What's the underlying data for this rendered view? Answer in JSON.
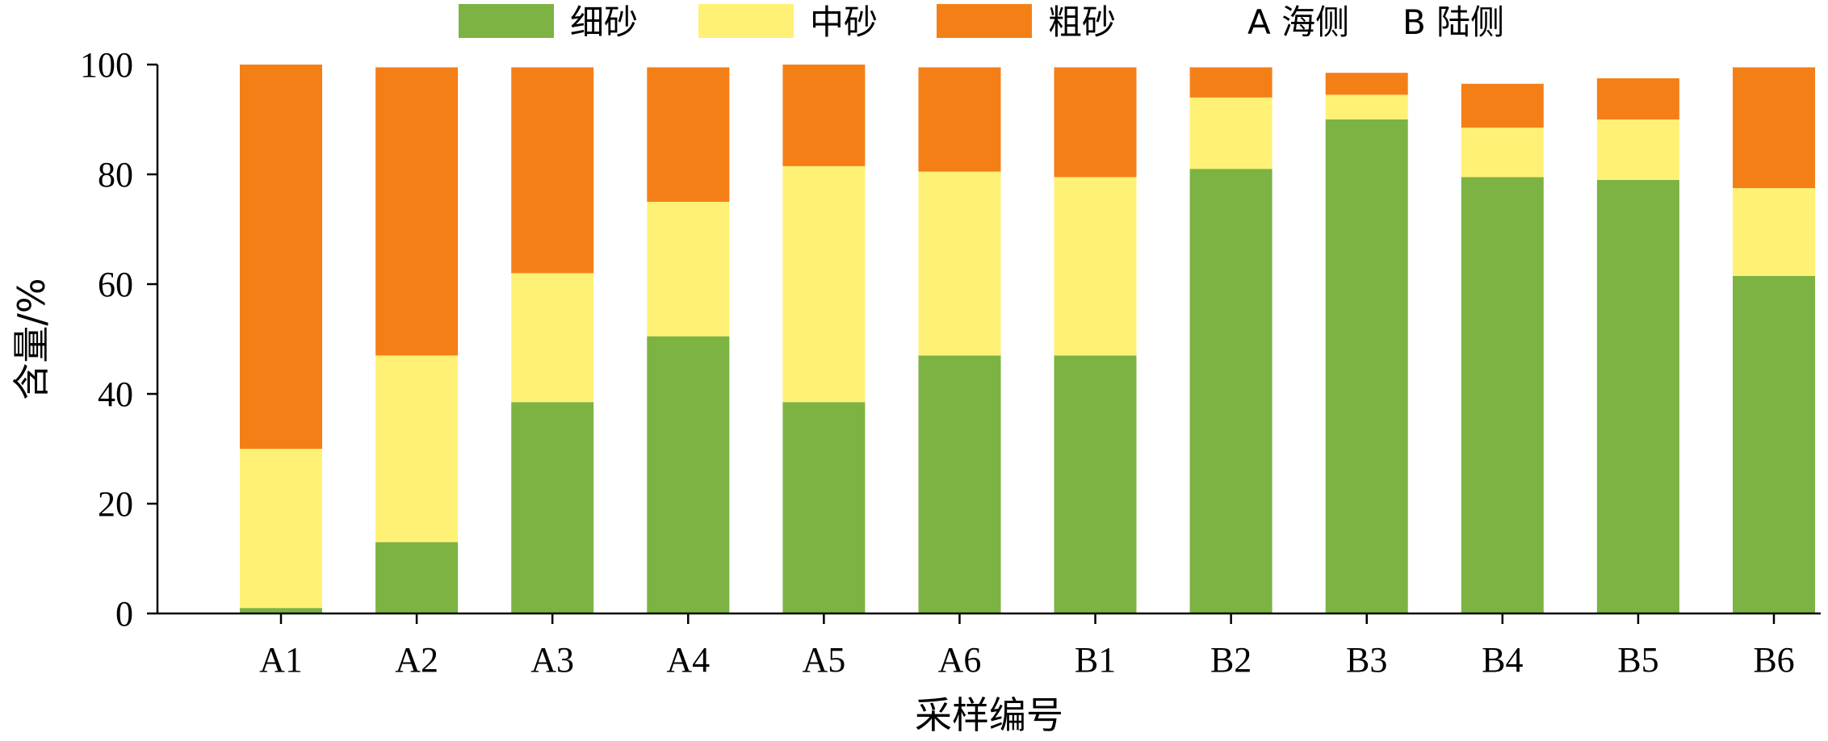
{
  "chart_data": {
    "type": "bar",
    "stacked": true,
    "categories": [
      "A1",
      "A2",
      "A3",
      "A4",
      "A5",
      "A6",
      "B1",
      "B2",
      "B3",
      "B4",
      "B5",
      "B6"
    ],
    "series": [
      {
        "name": "细砂",
        "color": "#7cb342",
        "values": [
          1,
          13,
          38.5,
          50.5,
          38.5,
          47,
          47,
          81,
          90,
          79.5,
          79,
          61.5
        ]
      },
      {
        "name": "中砂",
        "color": "#fff176",
        "values": [
          29,
          34,
          23.5,
          24.5,
          43,
          33.5,
          32.5,
          13,
          4.5,
          9,
          11,
          16
        ]
      },
      {
        "name": "粗砂",
        "color": "#f57f17",
        "values": [
          70,
          52.5,
          37.5,
          24.5,
          18.5,
          19,
          20,
          5.5,
          4,
          8,
          7.5,
          22
        ]
      }
    ],
    "legend_note_a": "A 海侧",
    "legend_note_b": "B 陆侧",
    "xlabel": "采样编号",
    "ylabel": "含量/%",
    "ylim": [
      0,
      100
    ],
    "yticks": [
      0,
      20,
      40,
      60,
      80,
      100
    ],
    "legend_position": "top",
    "grid": false
  }
}
